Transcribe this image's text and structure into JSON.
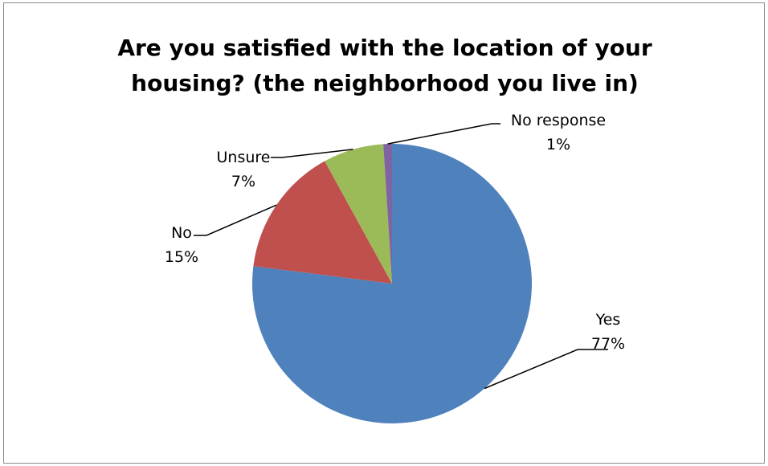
{
  "chart_data": {
    "type": "pie",
    "title_lines": [
      "Are you satisfied with the location of your",
      "housing? (the neighborhood you live in)"
    ],
    "slices": [
      {
        "label": "Yes",
        "value": 77,
        "display": "77%",
        "color": "#4F81BD"
      },
      {
        "label": "No",
        "value": 15,
        "display": "15%",
        "color": "#C0504D"
      },
      {
        "label": "Unsure",
        "value": 7,
        "display": "7%",
        "color": "#9BBB59"
      },
      {
        "label": "No response",
        "value": 1,
        "display": "1%",
        "color": "#8064A2"
      }
    ],
    "legend": "none",
    "data_labels": "outside with leader lines"
  }
}
